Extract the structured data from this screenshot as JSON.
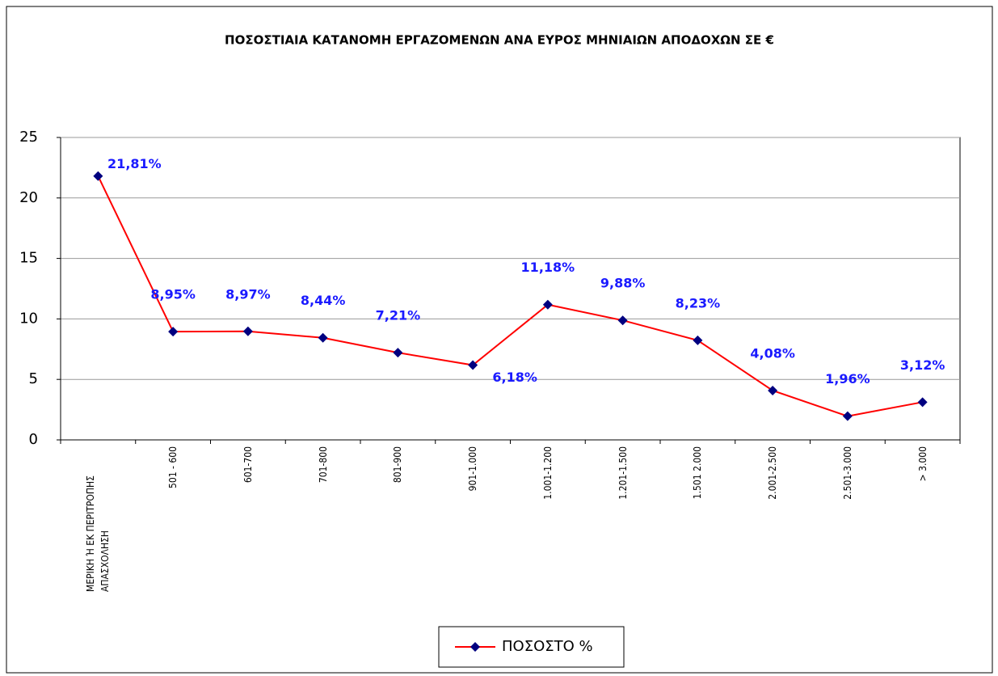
{
  "chart_data": {
    "type": "line",
    "title": "ΠΟΣΟΣΤΙΑΙΑ ΚΑΤΑΝΟΜΗ ΕΡΓΑΖΟΜΕΝΩΝ ΑΝΑ ΕΥΡΟΣ ΜΗΝΙΑΙΩΝ ΑΠΟΔΟΧΩΝ ΣΕ €",
    "categories": [
      "ΜΕΡΙΚΗ Ή ΕΚ ΠΕΡΙΤΡΟΠΗΣ ΑΠΑΣΧΟΛΗΣΗ",
      "501 - 600",
      "601-700",
      "701-800",
      "801-900",
      "901-1.000",
      "1.001-1.200",
      "1.201-1.500",
      "1.501 2.000",
      "2.001-2.500",
      "2.501-3.000",
      "> 3.000"
    ],
    "series": [
      {
        "name": "ΠΟΣΟΣΤΟ %",
        "color": "#ff0000",
        "marker_color": "#000080",
        "values": [
          21.81,
          8.95,
          8.97,
          8.44,
          7.21,
          6.18,
          11.18,
          9.88,
          8.23,
          4.08,
          1.96,
          3.12
        ],
        "value_labels": [
          "21,81%",
          "8,95%",
          "8,97%",
          "8,44%",
          "7,21%",
          "6,18%",
          "11,18%",
          "9,88%",
          "8,23%",
          "4,08%",
          "1,96%",
          "3,12%"
        ]
      }
    ],
    "ylim": [
      0,
      25
    ],
    "yticks": [
      0,
      5,
      10,
      15,
      20,
      25
    ],
    "grid": true,
    "legend": "bottom"
  }
}
